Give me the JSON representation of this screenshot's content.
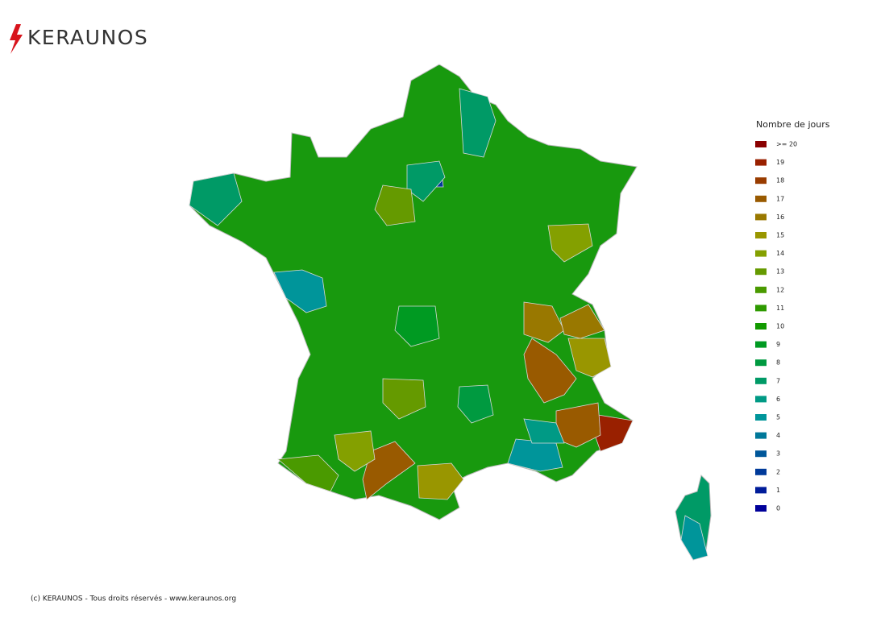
{
  "header": {
    "logo": "KERAUNOS"
  },
  "map": {
    "areas": [
      19,
      17,
      17,
      16,
      16,
      15,
      17,
      15,
      5,
      6,
      2,
      5,
      5,
      7,
      7,
      7,
      13,
      14,
      12,
      9,
      8,
      14,
      13
    ]
  },
  "legend": {
    "title": "Nombre de jours",
    "items": [
      {
        "value": 20,
        "label": ">= 20",
        "color": "#8a0000"
      },
      {
        "value": 19,
        "color": "#992000"
      },
      {
        "value": 18,
        "color": "#993c00"
      },
      {
        "value": 17,
        "color": "#995a00"
      },
      {
        "value": 16,
        "color": "#997800"
      },
      {
        "value": 15,
        "color": "#999600"
      },
      {
        "value": 14,
        "color": "#84a000"
      },
      {
        "value": 13,
        "color": "#659a00"
      },
      {
        "value": 12,
        "color": "#4a9a00"
      },
      {
        "value": 11,
        "color": "#2e9a00"
      },
      {
        "value": 10,
        "color": "#129a00"
      },
      {
        "value": 9,
        "color": "#009a22"
      },
      {
        "value": 8,
        "color": "#009a40"
      },
      {
        "value": 7,
        "color": "#009a66"
      },
      {
        "value": 6,
        "color": "#009a85"
      },
      {
        "value": 5,
        "color": "#00959a"
      },
      {
        "value": 4,
        "color": "#00789a"
      },
      {
        "value": 3,
        "color": "#00579a"
      },
      {
        "value": 2,
        "color": "#003a9a"
      },
      {
        "value": 1,
        "color": "#001c9a"
      },
      {
        "value": 0,
        "color": "#00009a"
      }
    ]
  },
  "footer": "(c) KERAUNOS - Tous droits réservés - www.keraunos.org"
}
